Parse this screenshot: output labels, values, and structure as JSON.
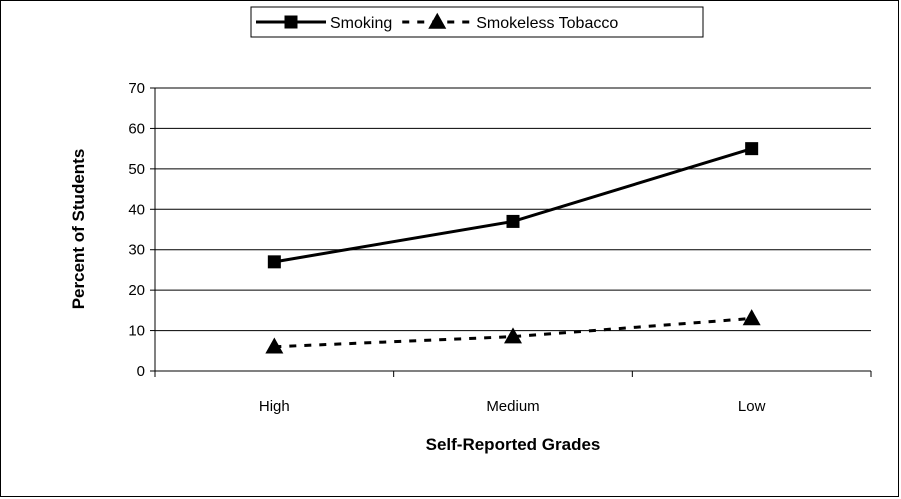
{
  "chart_data": {
    "type": "line",
    "categories": [
      "High",
      "Medium",
      "Low"
    ],
    "series": [
      {
        "name": "Smoking",
        "values": [
          27,
          37,
          55
        ],
        "color": "#000000",
        "marker": "square",
        "line_style": "solid"
      },
      {
        "name": "Smokeless Tobacco",
        "values": [
          6,
          8.5,
          13
        ],
        "color": "#000000",
        "marker": "triangle",
        "line_style": "dashed"
      }
    ],
    "xlabel": "Self-Reported Grades",
    "ylabel": "Percent of Students",
    "ylim": [
      0,
      70
    ],
    "yticks": [
      "0",
      "10",
      "20",
      "30",
      "40",
      "50",
      "60",
      "70"
    ],
    "grid": true,
    "legend_position": "top-center"
  }
}
